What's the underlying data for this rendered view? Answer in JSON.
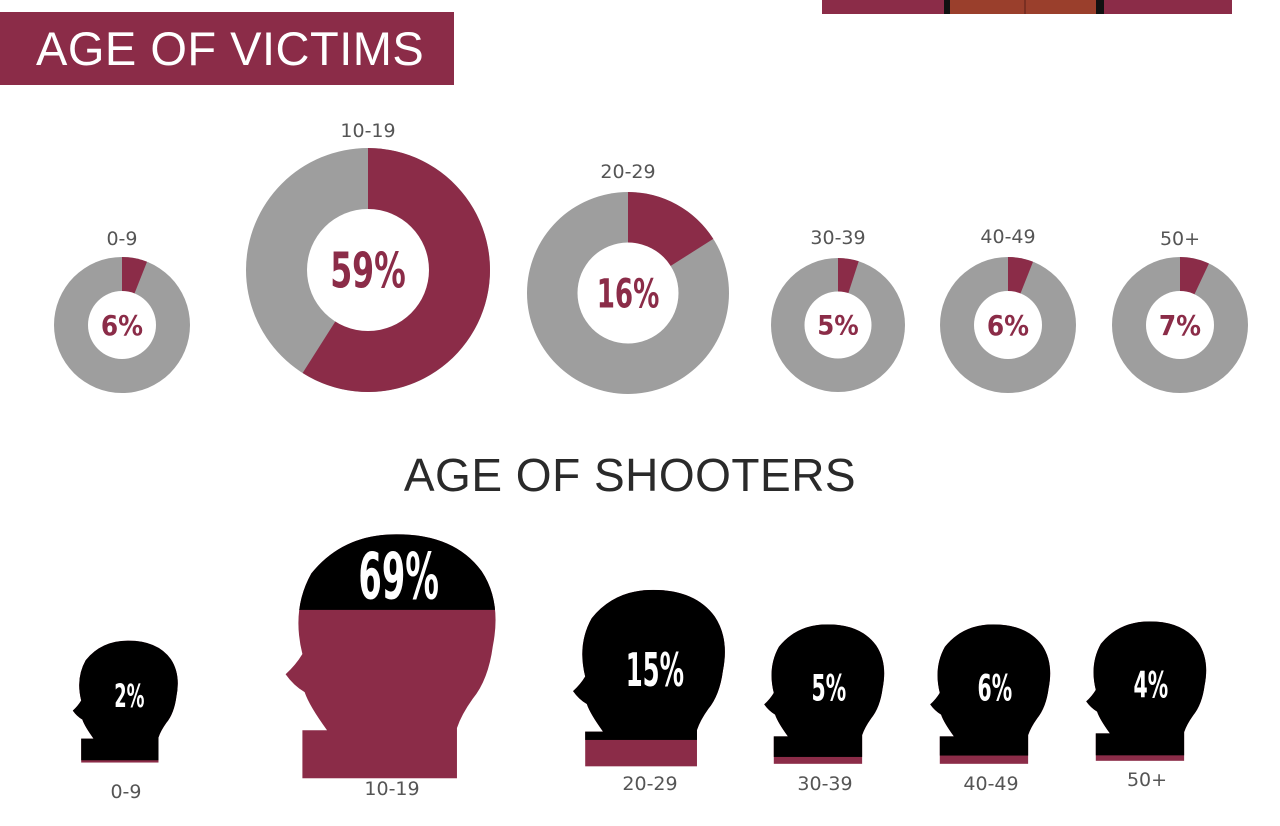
{
  "header": {
    "title": "AGE OF VICTIMS"
  },
  "shooters": {
    "title": "AGE OF SHOOTERS"
  },
  "colors": {
    "accent": "#8b2c48",
    "ring_gray": "#9e9e9e",
    "head_black": "#000000",
    "top_bar_orange": "#9a3f2c"
  },
  "chart_data": [
    {
      "type": "pie",
      "title": "AGE OF VICTIMS",
      "categories": [
        "0-9",
        "10-19",
        "20-29",
        "30-39",
        "40-49",
        "50+"
      ],
      "values": [
        6,
        59,
        16,
        5,
        6,
        7
      ],
      "labels": [
        "6%",
        "59%",
        "16%",
        "5%",
        "6%",
        "7%"
      ],
      "unit": "%"
    },
    {
      "type": "bar",
      "title": "AGE OF SHOOTERS",
      "categories": [
        "0-9",
        "10-19",
        "20-29",
        "30-39",
        "40-49",
        "50+"
      ],
      "values": [
        2,
        69,
        15,
        5,
        6,
        4
      ],
      "labels": [
        "2%",
        "69%",
        "15%",
        "5%",
        "6%",
        "4%"
      ],
      "unit": "%"
    }
  ]
}
